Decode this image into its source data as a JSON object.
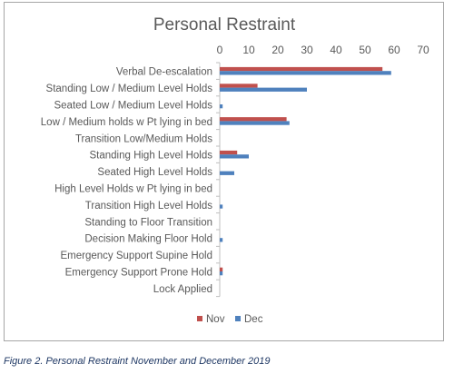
{
  "caption": "Figure 2.  Personal Restraint November and December 2019",
  "chart_data": {
    "type": "bar",
    "orientation": "horizontal",
    "title": "Personal Restraint",
    "xlim": [
      0,
      70
    ],
    "xticks": [
      0,
      10,
      20,
      30,
      40,
      50,
      60,
      70
    ],
    "x_axis_position": "top",
    "grid": false,
    "legend": "bottom",
    "categories": [
      "Verbal De-escalation",
      "Standing Low / Medium Level Holds",
      "Seated Low / Medium Level Holds",
      "Low / Medium holds w Pt lying in bed",
      "Transition Low/Medium Holds",
      "Standing High Level Holds",
      "Seated High Level Holds",
      "High Level Holds w Pt lying in bed",
      "Transition High Level Holds",
      "Standing to Floor Transition",
      "Decision Making Floor Hold",
      "Emergency Support Supine Hold",
      "Emergency Support Prone Hold",
      "Lock Applied"
    ],
    "series": [
      {
        "name": "Nov",
        "color": "#c0504d",
        "values": [
          56,
          13,
          0,
          23,
          0,
          6,
          0,
          0,
          0,
          0,
          0,
          0,
          1,
          0
        ]
      },
      {
        "name": "Dec",
        "color": "#4f81bd",
        "values": [
          59,
          30,
          1,
          24,
          0,
          10,
          5,
          0,
          1,
          0,
          1,
          0,
          1,
          0
        ]
      }
    ]
  }
}
